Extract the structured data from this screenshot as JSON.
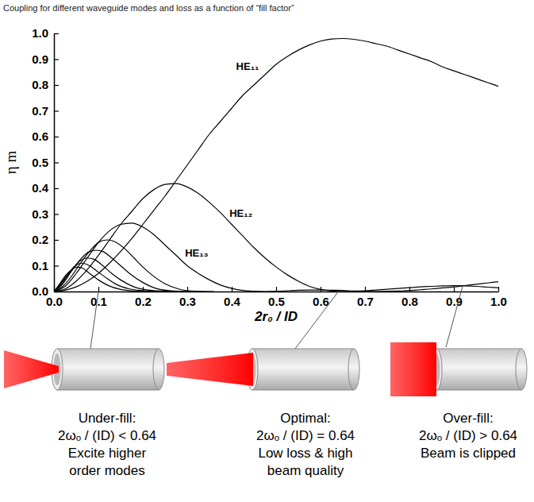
{
  "chart_data": {
    "type": "line",
    "title": "Coupling for different waveguide modes and loss as a function of “fill factor”",
    "x_label": "2r₀ / ID",
    "y_label": "η m",
    "xlim": [
      0,
      1
    ],
    "ylim": [
      0,
      1
    ],
    "xticks": [
      {
        "value": 0,
        "label": "0.0"
      },
      {
        "value": 0.1,
        "label": "0.1"
      },
      {
        "value": 0.2,
        "label": "0.2"
      },
      {
        "value": 0.3,
        "label": "0.3"
      },
      {
        "value": 0.4,
        "label": "0.4"
      },
      {
        "value": 0.5,
        "label": "0.5"
      },
      {
        "value": 0.6,
        "label": "0.6"
      },
      {
        "value": 0.7,
        "label": "0.7"
      },
      {
        "value": 0.8,
        "label": "0.8"
      },
      {
        "value": 0.9,
        "label": "0.9"
      },
      {
        "value": 1,
        "label": "1.0"
      }
    ],
    "yticks": [
      {
        "value": 0,
        "label": "0.0"
      },
      {
        "value": 0.1,
        "label": "0.1"
      },
      {
        "value": 0.2,
        "label": "0.2"
      },
      {
        "value": 0.3,
        "label": "0.3"
      },
      {
        "value": 0.4,
        "label": "0.4"
      },
      {
        "value": 0.5,
        "label": "0.5"
      },
      {
        "value": 0.6,
        "label": "0.6"
      },
      {
        "value": 0.7,
        "label": "0.7"
      },
      {
        "value": 0.8,
        "label": "0.8"
      },
      {
        "value": 0.9,
        "label": "0.9"
      },
      {
        "value": 1,
        "label": "1.0"
      }
    ],
    "grid": false,
    "color": "#000000",
    "line_style": "solid",
    "series": [
      {
        "name": "HE₁₁",
        "x": [
          0,
          0.025,
          0.05,
          0.075,
          0.1,
          0.125,
          0.15,
          0.175,
          0.2,
          0.225,
          0.25,
          0.275,
          0.3,
          0.325,
          0.35,
          0.375,
          0.4,
          0.425,
          0.45,
          0.475,
          0.5,
          0.525,
          0.55,
          0.575,
          0.6,
          0.625,
          0.65,
          0.675,
          0.7,
          0.725,
          0.75,
          0.775,
          0.8,
          0.825,
          0.85,
          0.875,
          0.9,
          0.925,
          0.95,
          0.975,
          1
        ],
        "values": [
          0,
          0.005,
          0.018,
          0.04,
          0.07,
          0.11,
          0.155,
          0.205,
          0.26,
          0.315,
          0.37,
          0.43,
          0.49,
          0.55,
          0.61,
          0.66,
          0.71,
          0.76,
          0.8,
          0.84,
          0.88,
          0.91,
          0.935,
          0.955,
          0.97,
          0.978,
          0.98,
          0.977,
          0.97,
          0.96,
          0.95,
          0.935,
          0.92,
          0.905,
          0.89,
          0.87,
          0.855,
          0.84,
          0.825,
          0.81,
          0.795
        ]
      },
      {
        "name": "HE₁₂",
        "x": [
          0,
          0.025,
          0.05,
          0.075,
          0.1,
          0.125,
          0.15,
          0.175,
          0.2,
          0.225,
          0.25,
          0.275,
          0.3,
          0.325,
          0.35,
          0.375,
          0.4,
          0.425,
          0.45,
          0.475,
          0.5,
          0.525,
          0.55,
          0.575,
          0.6,
          0.625,
          0.65,
          0.675,
          0.7,
          0.725,
          0.75,
          0.775,
          0.8,
          0.825,
          0.85,
          0.875,
          0.9,
          0.925,
          0.95,
          0.975,
          1
        ],
        "values": [
          0,
          0.01,
          0.04,
          0.085,
          0.14,
          0.2,
          0.26,
          0.31,
          0.36,
          0.395,
          0.415,
          0.418,
          0.405,
          0.38,
          0.345,
          0.305,
          0.26,
          0.215,
          0.17,
          0.13,
          0.095,
          0.065,
          0.04,
          0.02,
          0.008,
          0.002,
          0,
          0.001,
          0.003,
          0.006,
          0.009,
          0.012,
          0.015,
          0.018,
          0.02,
          0.022,
          0.023,
          0.022,
          0.02,
          0.017,
          0.014
        ]
      },
      {
        "name": "HE₁₃",
        "x": [
          0,
          0.025,
          0.05,
          0.075,
          0.1,
          0.125,
          0.15,
          0.175,
          0.2,
          0.225,
          0.25,
          0.275,
          0.3,
          0.325,
          0.35,
          0.375,
          0.4,
          0.425,
          0.45,
          0.475,
          0.5,
          0.525,
          0.55,
          0.575,
          0.6,
          0.625,
          0.65,
          0.675,
          0.7,
          0.725,
          0.75,
          0.775,
          0.8,
          0.825,
          0.85,
          0.875,
          0.9,
          0.925,
          0.95,
          0.975,
          1
        ],
        "values": [
          0,
          0.02,
          0.07,
          0.13,
          0.19,
          0.235,
          0.26,
          0.265,
          0.25,
          0.22,
          0.18,
          0.14,
          0.1,
          0.07,
          0.045,
          0.025,
          0.012,
          0.004,
          0.001,
          0,
          0.001,
          0.003,
          0.005,
          0.006,
          0.006,
          0.005,
          0.004,
          0.002,
          0.001,
          0,
          0.001,
          0.002,
          0.004,
          0.007,
          0.01,
          0.014,
          0.018,
          0.023,
          0.028,
          0.033,
          0.038
        ]
      },
      {
        "x": [
          0,
          0.02,
          0.04,
          0.06,
          0.08,
          0.1,
          0.12,
          0.14,
          0.16,
          0.18,
          0.2,
          0.22,
          0.25,
          0.28,
          0.32,
          0.36
        ],
        "values": [
          0,
          0.02,
          0.06,
          0.11,
          0.155,
          0.19,
          0.2,
          0.19,
          0.165,
          0.13,
          0.095,
          0.065,
          0.03,
          0.01,
          0.001,
          0
        ]
      },
      {
        "x": [
          0,
          0.02,
          0.04,
          0.06,
          0.08,
          0.095,
          0.11,
          0.13,
          0.15,
          0.17,
          0.2,
          0.23,
          0.27,
          0.32
        ],
        "values": [
          0,
          0.03,
          0.08,
          0.125,
          0.155,
          0.16,
          0.155,
          0.13,
          0.1,
          0.07,
          0.035,
          0.012,
          0.002,
          0
        ]
      },
      {
        "x": [
          0,
          0.015,
          0.03,
          0.045,
          0.06,
          0.075,
          0.09,
          0.11,
          0.13,
          0.15,
          0.18,
          0.22,
          0.27
        ],
        "values": [
          0,
          0.025,
          0.06,
          0.095,
          0.12,
          0.13,
          0.125,
          0.1,
          0.07,
          0.045,
          0.018,
          0.004,
          0
        ]
      },
      {
        "x": [
          0,
          0.015,
          0.03,
          0.045,
          0.062,
          0.08,
          0.1,
          0.12,
          0.14,
          0.17,
          0.21,
          0.25
        ],
        "values": [
          0,
          0.03,
          0.065,
          0.095,
          0.11,
          0.1,
          0.075,
          0.05,
          0.028,
          0.01,
          0.002,
          0
        ]
      },
      {
        "x": [
          0,
          0.013,
          0.026,
          0.04,
          0.052,
          0.065,
          0.08,
          0.1,
          0.12,
          0.15,
          0.19,
          0.23
        ],
        "values": [
          0,
          0.03,
          0.062,
          0.085,
          0.095,
          0.09,
          0.07,
          0.045,
          0.025,
          0.008,
          0.001,
          0
        ]
      }
    ]
  },
  "diagram": {
    "panels": [
      {
        "x": 0.1,
        "y": 0,
        "lines": [
          "Under-fill:",
          "2ωₒ / (ID) < 0.64",
          "Excite higher",
          "order modes"
        ]
      },
      {
        "x": 0.64,
        "y": 0,
        "lines": [
          "Optimal:",
          "2ωₒ / (ID) = 0.64",
          "Low loss & high",
          "beam quality"
        ]
      },
      {
        "x": 0.92,
        "y": 0.022,
        "lines": [
          "Over-fill:",
          "2ωₒ / (ID) > 0.64",
          "Beam is clipped"
        ]
      }
    ]
  }
}
